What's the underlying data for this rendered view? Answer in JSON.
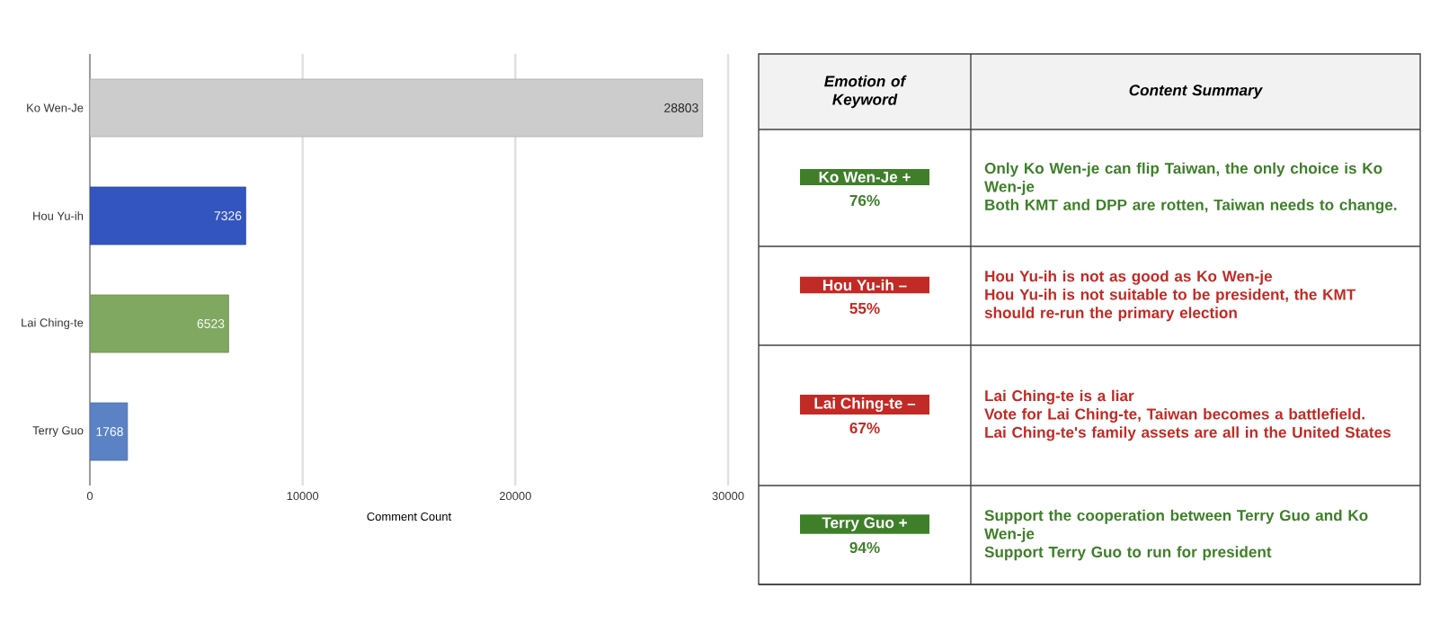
{
  "chart_data": [
    {
      "type": "bar",
      "orientation": "horizontal",
      "categories": [
        "Ko Wen-Je",
        "Hou Yu-ih",
        "Lai Ching-te",
        "Terry Guo"
      ],
      "values": [
        28803,
        7326,
        6523,
        1768
      ],
      "colors": [
        "#cccccc",
        "#3355c0",
        "#80a860",
        "#5a82c4"
      ],
      "xlabel": "Comment Count",
      "xlim": [
        0,
        30000
      ],
      "xticks": [
        0,
        10000,
        20000,
        30000
      ],
      "grid": "x",
      "data_labels": true
    },
    {
      "type": "other",
      "categories": [
        "Ko Wen-Je +",
        "Hou Yu-ih  –",
        "Lai Ching-te  –",
        "Terry Guo +"
      ],
      "value_labels": [
        "76%",
        "55%",
        "67%",
        "94%"
      ],
      "colors": [
        "#3f7f2a",
        "#c22a25",
        "#c22a25",
        "#3f7f2a"
      ],
      "annotations": [
        "Emotion of Keyword",
        "Content Summary",
        "Only Ko Wen-je can flip Taiwan, the only choice is Ko Wen-je",
        "Both KMT and DPP are rotten, Taiwan needs to change.",
        "Hou Yu-ih is not as good as Ko Wen-je",
        "Hou Yu-ih is not suitable to be president, the KMT should re-run the primary election",
        "Lai Ching-te is a liar",
        "Vote for Lai Ching-te, Taiwan becomes a battlefield.",
        "Lai Ching-te's family assets are all in the United States",
        "Support the cooperation between Terry Guo and Ko Wen-je",
        "Support Terry Guo to run for president"
      ]
    }
  ]
}
